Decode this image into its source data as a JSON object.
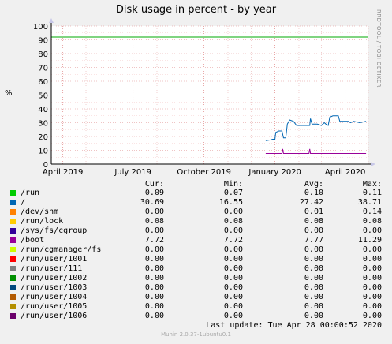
{
  "chart_data": {
    "type": "line",
    "title": "Disk usage in percent - by year",
    "ylabel": "%",
    "side_label": "RRDTOOL / TOBI OETIKER",
    "ylim": [
      0,
      100
    ],
    "yticks": [
      0,
      10,
      20,
      30,
      40,
      50,
      60,
      70,
      80,
      90,
      100
    ],
    "xlim": [
      "2019-03-17",
      "2020-05-01"
    ],
    "xticks": [
      {
        "date": "2019-04-01",
        "label": "April 2019"
      },
      {
        "date": "2019-07-01",
        "label": "July 2019"
      },
      {
        "date": "2019-10-01",
        "label": "October 2019"
      },
      {
        "date": "2020-01-01",
        "label": "January 2020"
      },
      {
        "date": "2020-04-01",
        "label": "April 2020"
      }
    ],
    "warning_line": {
      "value": 92,
      "color": "#00aa00"
    },
    "series": [
      {
        "name": "/run",
        "color": "#00cc00",
        "cur": "0.09",
        "min": "0.07",
        "avg": "0.10",
        "max": "0.11",
        "points": []
      },
      {
        "name": "/",
        "color": "#0066b3",
        "cur": "30.69",
        "min": "16.55",
        "avg": "27.42",
        "max": "38.71",
        "points": [
          [
            "2019-12-20",
            17
          ],
          [
            "2019-12-26",
            17.5
          ],
          [
            "2019-12-29",
            18
          ],
          [
            "2020-01-01",
            18
          ],
          [
            "2020-01-02",
            23
          ],
          [
            "2020-01-06",
            24
          ],
          [
            "2020-01-10",
            24
          ],
          [
            "2020-01-12",
            19
          ],
          [
            "2020-01-15",
            19
          ],
          [
            "2020-01-17",
            29
          ],
          [
            "2020-01-20",
            32
          ],
          [
            "2020-01-25",
            31
          ],
          [
            "2020-01-29",
            28
          ],
          [
            "2020-02-05",
            28
          ],
          [
            "2020-02-15",
            28
          ],
          [
            "2020-02-16",
            33
          ],
          [
            "2020-02-18",
            29
          ],
          [
            "2020-02-25",
            29
          ],
          [
            "2020-03-01",
            28
          ],
          [
            "2020-03-05",
            30
          ],
          [
            "2020-03-07",
            29
          ],
          [
            "2020-03-10",
            28
          ],
          [
            "2020-03-12",
            34
          ],
          [
            "2020-03-16",
            35
          ],
          [
            "2020-03-23",
            35
          ],
          [
            "2020-03-25",
            31
          ],
          [
            "2020-04-01",
            31
          ],
          [
            "2020-04-05",
            31
          ],
          [
            "2020-04-08",
            30
          ],
          [
            "2020-04-12",
            31
          ],
          [
            "2020-04-20",
            30
          ],
          [
            "2020-04-28",
            31
          ]
        ]
      },
      {
        "name": "/dev/shm",
        "color": "#ff8000",
        "cur": "0.00",
        "min": "0.00",
        "avg": "0.01",
        "max": "0.14",
        "points": []
      },
      {
        "name": "/run/lock",
        "color": "#ffcc00",
        "cur": "0.08",
        "min": "0.08",
        "avg": "0.08",
        "max": "0.08",
        "points": []
      },
      {
        "name": "/sys/fs/cgroup",
        "color": "#330099",
        "cur": "0.00",
        "min": "0.00",
        "avg": "0.00",
        "max": "0.00",
        "points": []
      },
      {
        "name": "/boot",
        "color": "#990099",
        "cur": "7.72",
        "min": "7.72",
        "avg": "7.77",
        "max": "11.29",
        "points": [
          [
            "2019-12-20",
            7.7
          ],
          [
            "2020-01-10",
            7.7
          ],
          [
            "2020-01-11",
            11
          ],
          [
            "2020-01-12",
            7.7
          ],
          [
            "2020-02-14",
            7.7
          ],
          [
            "2020-02-15",
            11
          ],
          [
            "2020-02-16",
            7.7
          ],
          [
            "2020-04-28",
            7.7
          ]
        ]
      },
      {
        "name": "/run/cgmanager/fs",
        "color": "#ccff00",
        "cur": "0.00",
        "min": "0.00",
        "avg": "0.00",
        "max": "0.00",
        "points": []
      },
      {
        "name": "/run/user/1001",
        "color": "#ff0000",
        "cur": "0.00",
        "min": "0.00",
        "avg": "0.00",
        "max": "0.00",
        "points": []
      },
      {
        "name": "/run/user/111",
        "color": "#808080",
        "cur": "0.00",
        "min": "0.00",
        "avg": "0.00",
        "max": "0.00",
        "points": []
      },
      {
        "name": "/run/user/1002",
        "color": "#008f00",
        "cur": "0.00",
        "min": "0.00",
        "avg": "0.00",
        "max": "0.00",
        "points": []
      },
      {
        "name": "/run/user/1003",
        "color": "#00487d",
        "cur": "0.00",
        "min": "0.00",
        "avg": "0.00",
        "max": "0.00",
        "points": []
      },
      {
        "name": "/run/user/1004",
        "color": "#b35a00",
        "cur": "0.00",
        "min": "0.00",
        "avg": "0.00",
        "max": "0.00",
        "points": []
      },
      {
        "name": "/run/user/1005",
        "color": "#b38f00",
        "cur": "0.00",
        "min": "0.00",
        "avg": "0.00",
        "max": "0.00",
        "points": []
      },
      {
        "name": "/run/user/1006",
        "color": "#6b006b",
        "cur": "0.00",
        "min": "0.00",
        "avg": "0.00",
        "max": "0.00",
        "points": []
      }
    ]
  },
  "legend_headers": {
    "cur": "Cur:",
    "min": "Min:",
    "avg": "Avg:",
    "max": "Max:"
  },
  "last_update": "Last update: Tue Apr 28 00:00:52 2020",
  "footer": "Munin 2.0.37-1ubuntu0.1"
}
